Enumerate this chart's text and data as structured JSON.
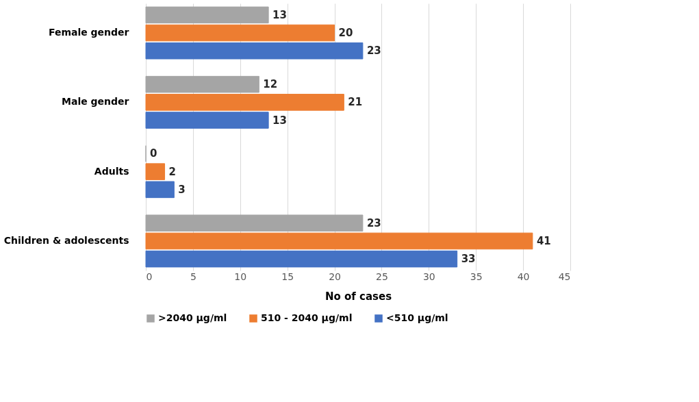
{
  "chart_data": {
    "type": "bar",
    "orientation": "horizontal",
    "xlabel": "No of cases",
    "categories": [
      "Female gender",
      "Male gender",
      "Adults",
      "Children & adolescents"
    ],
    "series": [
      {
        "name": ">2040 µg/ml",
        "color": "#a5a5a5",
        "values": [
          13,
          12,
          0,
          23
        ]
      },
      {
        "name": "510 - 2040 µg/ml",
        "color": "#ed7d31",
        "values": [
          20,
          21,
          2,
          41
        ]
      },
      {
        "name": "<510 µg/ml",
        "color": "#4472c4",
        "values": [
          23,
          13,
          3,
          33
        ]
      }
    ],
    "xlim": [
      0,
      45
    ],
    "xticks": [
      0,
      5,
      10,
      15,
      20,
      25,
      30,
      35,
      40,
      45
    ],
    "grid": "x",
    "legend": "bottom",
    "data_labels": true
  }
}
